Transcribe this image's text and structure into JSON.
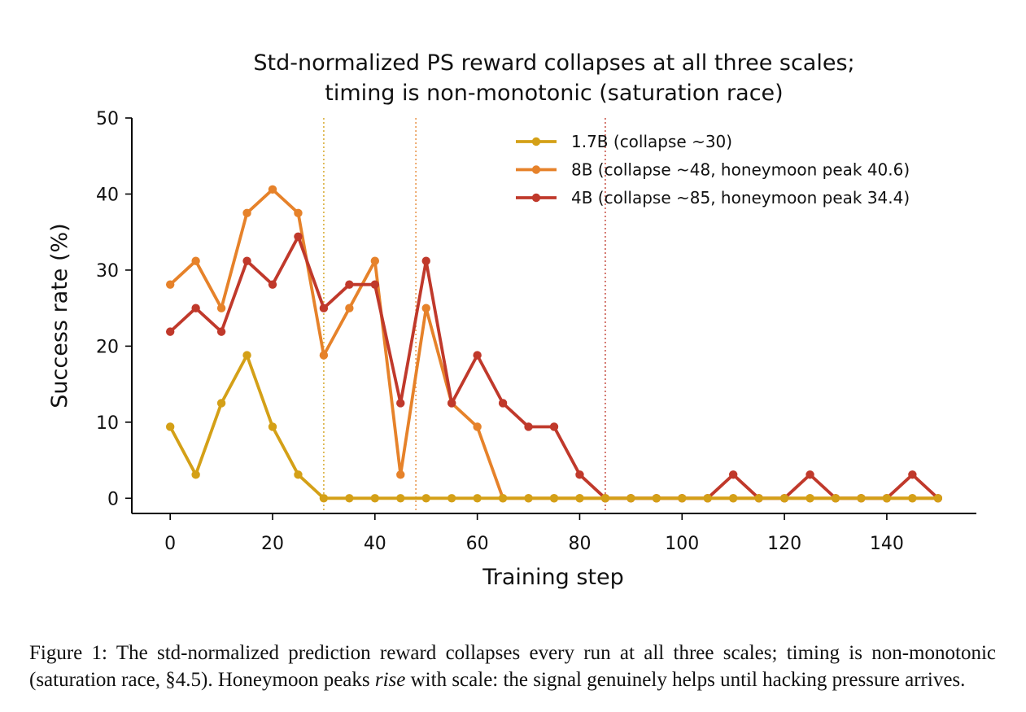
{
  "chart_data": {
    "type": "line",
    "title": [
      "Std-normalized PS reward collapses at all three scales;",
      "timing is non-monotonic (saturation race)"
    ],
    "xlabel": "Training step",
    "ylabel": "Success rate (%)",
    "xlim": [
      -7.5,
      157.5
    ],
    "ylim": [
      -2,
      50
    ],
    "xticks": [
      0,
      20,
      40,
      60,
      80,
      100,
      120,
      140
    ],
    "yticks": [
      0,
      10,
      20,
      30,
      40,
      50
    ],
    "grid": false,
    "legend_position": "top-right",
    "x": [
      0,
      5,
      10,
      15,
      20,
      25,
      30,
      35,
      40,
      45,
      50,
      55,
      60,
      65,
      70,
      75,
      80,
      85,
      90,
      95,
      100,
      105,
      110,
      115,
      120,
      125,
      130,
      135,
      140,
      145,
      150
    ],
    "series": [
      {
        "name": "8B (collapse ~48, honeymoon peak 40.6)",
        "color": "#E6822A",
        "collapse": 48,
        "values": [
          28.1,
          31.2,
          25.0,
          37.5,
          40.6,
          37.5,
          18.8,
          25.0,
          31.2,
          3.1,
          25.0,
          12.5,
          9.4,
          0,
          0,
          0,
          0,
          0,
          0,
          0,
          0,
          0,
          0,
          0,
          0,
          0,
          0,
          0,
          0,
          0,
          0
        ]
      },
      {
        "name": "4B (collapse ~85, honeymoon peak 34.4)",
        "color": "#C0392B",
        "collapse": 85,
        "values": [
          21.9,
          25.0,
          21.9,
          31.2,
          28.1,
          34.4,
          25.0,
          28.1,
          28.1,
          12.5,
          31.2,
          12.5,
          18.8,
          12.5,
          9.4,
          9.4,
          3.1,
          0,
          0,
          0,
          0,
          0,
          3.1,
          0,
          0,
          3.1,
          0,
          0,
          0,
          3.1,
          0
        ]
      },
      {
        "name": "1.7B (collapse ~30)",
        "color": "#D4A017",
        "collapse": 30,
        "values": [
          9.4,
          3.1,
          12.5,
          18.8,
          9.4,
          3.1,
          0,
          0,
          0,
          0,
          0,
          0,
          0,
          0,
          0,
          0,
          0,
          0,
          0,
          0,
          0,
          0,
          0,
          0,
          0,
          0,
          0,
          0,
          0,
          0,
          0
        ]
      }
    ],
    "legend_order": [
      "1.7B (collapse ~30)",
      "8B (collapse ~48, honeymoon peak 40.6)",
      "4B (collapse ~85, honeymoon peak 34.4)"
    ]
  },
  "caption": {
    "lead": "Figure 1:  The std-normalized prediction reward collapses every run at all three scales; timing is non-monotonic (saturation race, §4.5).  Honeymoon peaks ",
    "emph": "rise",
    "tail": " with scale:  the signal genuinely helps until hacking pressure arrives."
  }
}
